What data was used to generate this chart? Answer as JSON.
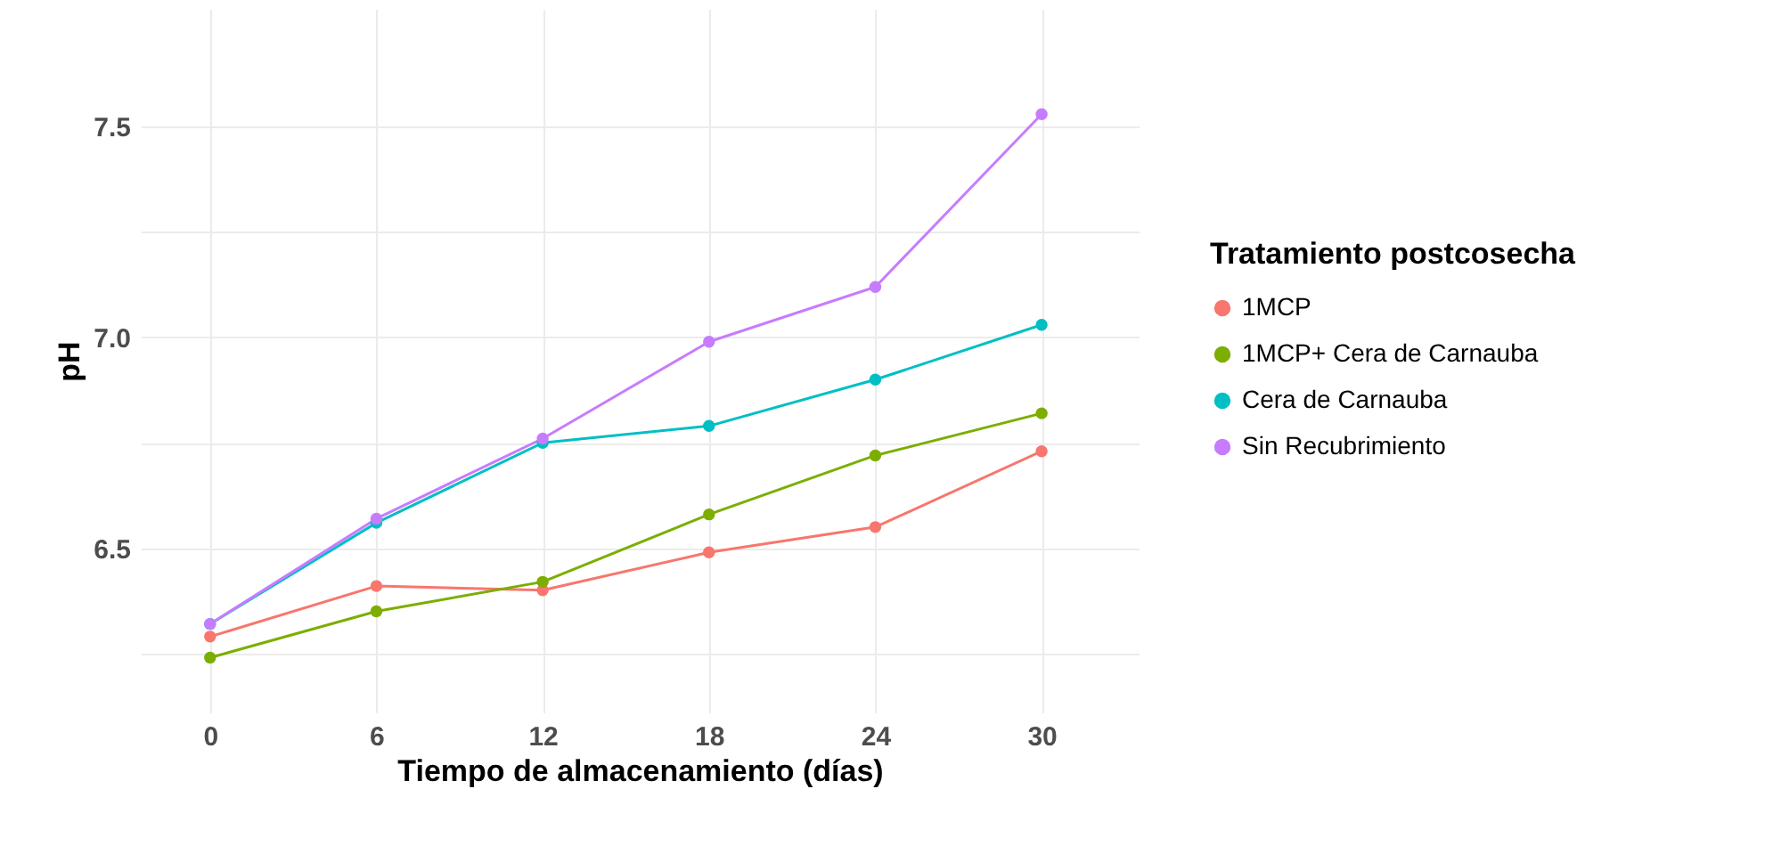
{
  "chart_data": {
    "type": "line",
    "xlabel": "Tiempo de almacenamiento (días)",
    "ylabel": "pH",
    "legend_title": "Tratamiento postcosecha",
    "x": [
      0,
      6,
      12,
      18,
      24,
      30
    ],
    "series": [
      {
        "name": "1MCP",
        "color": "#f8766d",
        "values": [
          6.29,
          6.41,
          6.4,
          6.49,
          6.55,
          6.73
        ]
      },
      {
        "name": "1MCP+ Cera de Carnauba",
        "color": "#7cae00",
        "values": [
          6.24,
          6.35,
          6.42,
          6.58,
          6.72,
          6.82
        ]
      },
      {
        "name": "Cera de Carnauba",
        "color": "#00bfc4",
        "values": [
          6.32,
          6.56,
          6.75,
          6.79,
          6.9,
          7.03
        ]
      },
      {
        "name": "Sin Recubrimiento",
        "color": "#c77cff",
        "values": [
          6.32,
          6.57,
          6.76,
          6.99,
          7.12,
          7.53
        ]
      }
    ],
    "xlim": [
      -2.5,
      33.5
    ],
    "xticks": [
      0,
      6,
      12,
      18,
      24,
      30
    ],
    "ylim": [
      6.11,
      7.78
    ],
    "yticks": [
      {
        "value": 6.25,
        "label": null
      },
      6.5,
      {
        "value": 6.75,
        "label": null
      },
      {
        "value": 7.0,
        "label": "7.0"
      },
      {
        "value": 7.25,
        "label": null
      },
      7.5
    ],
    "grid": true,
    "legend": "right",
    "marker": "circle",
    "line_style": "solid"
  }
}
